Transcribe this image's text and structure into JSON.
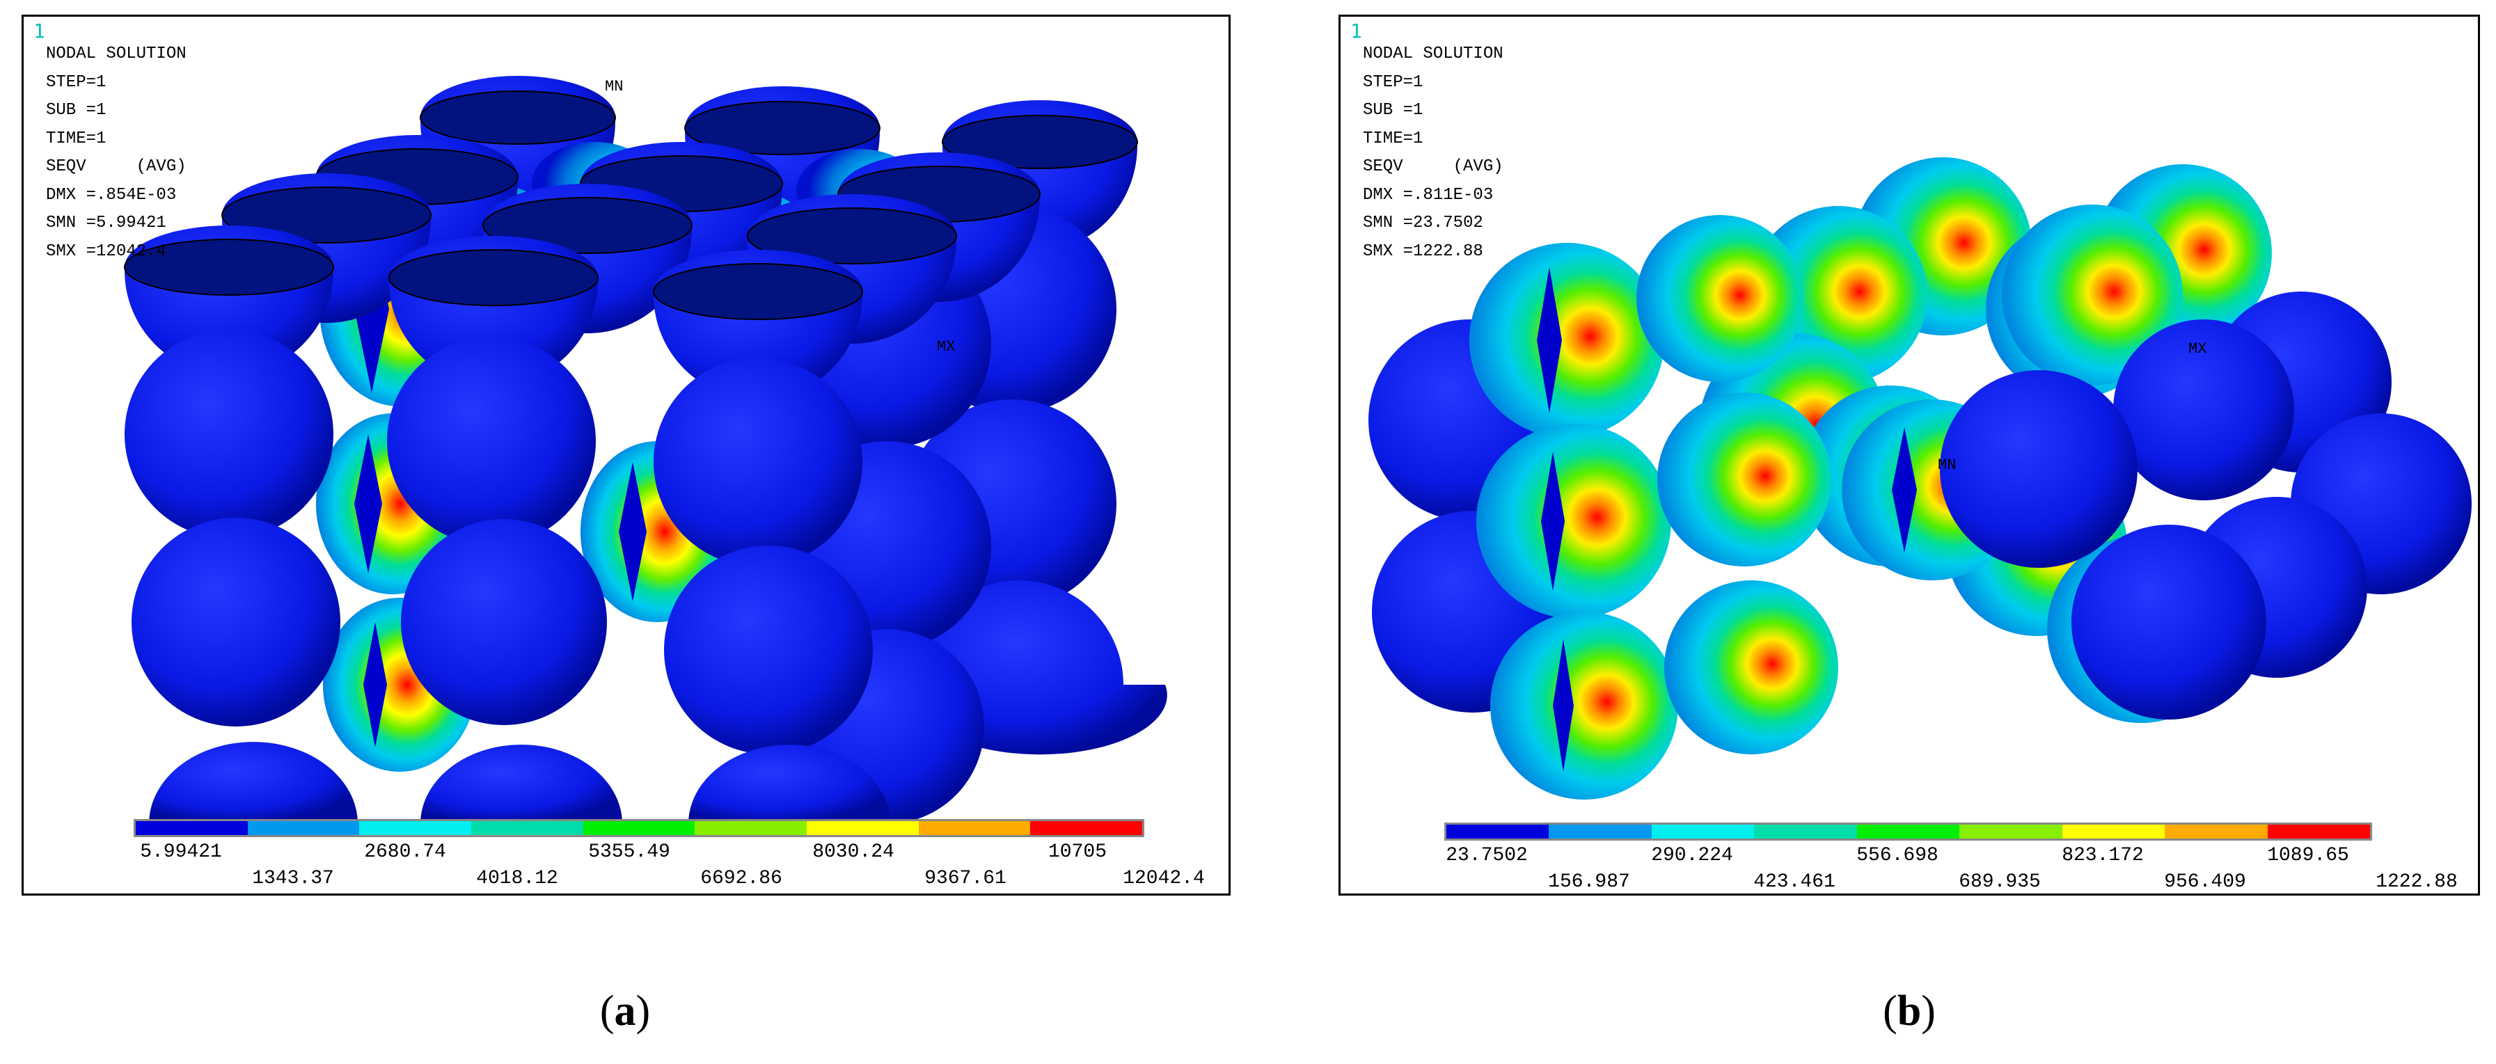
{
  "panels": [
    {
      "window_number": "1",
      "title": "NODAL SOLUTION",
      "lines": [
        "STEP=1",
        "SUB =1",
        "TIME=1",
        "SEQV     (AVG)",
        "DMX =.854E-03",
        "SMN =5.99421",
        "SMX =12042.4"
      ],
      "marker_mn": "MN",
      "marker_mx": "MX",
      "legend_upper": [
        "5.99421",
        "2680.74",
        "5355.49",
        "8030.24",
        "10705"
      ],
      "legend_lower": [
        "1343.37",
        "4018.12",
        "6692.86",
        "9367.61",
        "12042.4"
      ],
      "caption_letter": "a"
    },
    {
      "window_number": "1",
      "title": "NODAL SOLUTION",
      "lines": [
        "STEP=1",
        "SUB =1",
        "TIME=1",
        "SEQV     (AVG)",
        "DMX =.811E-03",
        "SMN =23.7502",
        "SMX =1222.88"
      ],
      "marker_mn": "MN",
      "marker_mx": "MX",
      "legend_upper": [
        "23.7502",
        "290.224",
        "556.698",
        "823.172",
        "1089.65"
      ],
      "legend_lower": [
        "156.987",
        "423.461",
        "689.935",
        "956.409",
        "1222.88"
      ],
      "caption_letter": "b"
    }
  ],
  "legend_colors": [
    "#0000dd",
    "#0099ee",
    "#00eeee",
    "#00ddaa",
    "#00ee00",
    "#88ee00",
    "#ffff00",
    "#ffaa00",
    "#ff0000"
  ],
  "colors": {
    "sphere_blue": "#0a1ae6",
    "sphere_dark": "#000a9c",
    "background": "#ffffff"
  }
}
